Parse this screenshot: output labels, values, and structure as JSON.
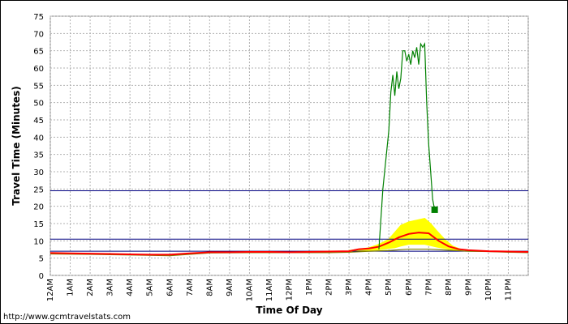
{
  "chart_data": {
    "type": "line",
    "xlabel": "Time Of Day",
    "ylabel": "Travel Time (Minutes)",
    "ylim": [
      0,
      75
    ],
    "yticks": [
      0,
      5,
      10,
      15,
      20,
      25,
      30,
      35,
      40,
      45,
      50,
      55,
      60,
      65,
      70,
      75
    ],
    "xlim": [
      0,
      24
    ],
    "xtick_labels": [
      "12AM",
      "1AM",
      "2AM",
      "3AM",
      "4AM",
      "5AM",
      "6AM",
      "7AM",
      "8AM",
      "9AM",
      "10AM",
      "11AM",
      "12PM",
      "1PM",
      "2PM",
      "3PM",
      "4PM",
      "5PM",
      "6PM",
      "7PM",
      "8PM",
      "9PM",
      "10PM",
      "11PM"
    ],
    "grid": true,
    "reference_lines": [
      {
        "y": 24.5,
        "color": "#000080"
      },
      {
        "y": 10.5,
        "color": "#000080"
      },
      {
        "y": 7.0,
        "color": "#000080"
      }
    ],
    "series": [
      {
        "color": "#008000",
        "style": "line",
        "x": [
          16.5,
          16.7,
          17.0,
          17.1,
          17.2,
          17.3,
          17.4,
          17.5,
          17.6,
          17.7,
          17.8,
          17.9,
          18.0,
          18.1,
          18.2,
          18.3,
          18.4,
          18.5,
          18.6,
          18.7,
          18.8,
          18.9,
          19.0,
          19.1,
          19.2,
          19.3
        ],
        "y": [
          7.5,
          25,
          42,
          53,
          58,
          52,
          59,
          54,
          57,
          65,
          65,
          62,
          64,
          61,
          65,
          63,
          66,
          61,
          67,
          66,
          67,
          50,
          38,
          30,
          22,
          19
        ]
      },
      {
        "color": "#008000",
        "style": "marker",
        "x": [
          19.3
        ],
        "y": [
          19
        ]
      },
      {
        "color": "#ff0000",
        "style": "line",
        "x": [
          0,
          1,
          2,
          3,
          4,
          5,
          6,
          7,
          8,
          9,
          10,
          11,
          12,
          13,
          14,
          15,
          15.5,
          16,
          16.5,
          17,
          17.5,
          18,
          18.5,
          19,
          19.5,
          20,
          20.5,
          21,
          22,
          23,
          24
        ],
        "y": [
          6.5,
          6.4,
          6.3,
          6.2,
          6.1,
          6.0,
          6.0,
          6.4,
          6.7,
          6.7,
          6.8,
          6.8,
          6.7,
          6.8,
          6.9,
          7.0,
          7.6,
          7.8,
          8.3,
          9.5,
          11.0,
          12.0,
          12.4,
          12.2,
          10.0,
          8.4,
          7.6,
          7.3,
          7.0,
          6.9,
          6.8
        ]
      },
      {
        "color": "#808000",
        "style": "line",
        "x": [
          0,
          2,
          4,
          6,
          8,
          10,
          12,
          14,
          15,
          16,
          17,
          18,
          19,
          20,
          21,
          22,
          23,
          24
        ],
        "y": [
          6.2,
          6.1,
          5.9,
          5.7,
          6.5,
          6.6,
          6.6,
          6.6,
          6.7,
          7.0,
          7.2,
          7.6,
          7.6,
          7.3,
          7.0,
          6.9,
          6.7,
          6.6
        ]
      }
    ],
    "band": {
      "color": "#ffff00",
      "x": [
        15.0,
        16.0,
        16.5,
        17.0,
        17.3,
        17.6,
        18.0,
        18.4,
        18.8,
        19.1,
        19.4,
        19.8,
        20.2,
        20.6
      ],
      "low": [
        6.8,
        7.2,
        7.4,
        7.8,
        8.0,
        8.5,
        9.0,
        9.0,
        9.0,
        8.6,
        8.2,
        7.8,
        7.4,
        7.1
      ],
      "high": [
        7.2,
        8.0,
        9.0,
        10.5,
        12.5,
        14.5,
        15.5,
        16.0,
        16.5,
        15.0,
        13.0,
        10.5,
        8.5,
        7.6
      ]
    }
  },
  "footer": {
    "credit": "http://www.gcmtravelstats.com"
  }
}
